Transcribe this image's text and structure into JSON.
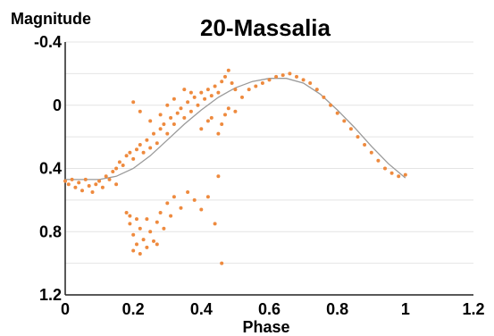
{
  "chart_data": {
    "type": "scatter",
    "title": "20-Massalia",
    "xlabel": "Phase",
    "ylabel": "Magnitude",
    "xlim": [
      0,
      1.2
    ],
    "ylim": [
      -0.4,
      1.2
    ],
    "y_inverted": true,
    "grid": "horizontal",
    "x_ticks": [
      "0",
      "0.2",
      "0.4",
      "0.6",
      "0.8",
      "1",
      "1.2"
    ],
    "y_ticks": [
      "-0.4",
      "0",
      "0.4",
      "0.8",
      "1.2"
    ],
    "colors": {
      "points": "#ee8a3e",
      "fit": "#9a9a9a"
    },
    "series": [
      {
        "type": "scatter",
        "points": [
          [
            0.0,
            0.48
          ],
          [
            0.01,
            0.5
          ],
          [
            0.02,
            0.47
          ],
          [
            0.03,
            0.52
          ],
          [
            0.04,
            0.49
          ],
          [
            0.05,
            0.54
          ],
          [
            0.06,
            0.47
          ],
          [
            0.07,
            0.51
          ],
          [
            0.08,
            0.55
          ],
          [
            0.09,
            0.5
          ],
          [
            0.1,
            0.48
          ],
          [
            0.11,
            0.52
          ],
          [
            0.12,
            0.45
          ],
          [
            0.13,
            0.47
          ],
          [
            0.14,
            0.42
          ],
          [
            0.15,
            0.5
          ],
          [
            0.15,
            0.4
          ],
          [
            0.16,
            0.36
          ],
          [
            0.17,
            0.38
          ],
          [
            0.18,
            0.32
          ],
          [
            0.19,
            0.3
          ],
          [
            0.2,
            0.34
          ],
          [
            0.21,
            0.28
          ],
          [
            0.22,
            0.25
          ],
          [
            0.23,
            0.3
          ],
          [
            0.24,
            0.22
          ],
          [
            0.25,
            0.27
          ],
          [
            0.26,
            0.18
          ],
          [
            0.27,
            0.24
          ],
          [
            0.28,
            0.15
          ],
          [
            0.29,
            0.12
          ],
          [
            0.3,
            0.18
          ],
          [
            0.31,
            0.08
          ],
          [
            0.32,
            0.12
          ],
          [
            0.33,
            0.05
          ],
          [
            0.34,
            0.02
          ],
          [
            0.35,
            0.08
          ],
          [
            0.36,
            -0.02
          ],
          [
            0.37,
            0.04
          ],
          [
            0.38,
            -0.05
          ],
          [
            0.39,
            0.0
          ],
          [
            0.4,
            -0.08
          ],
          [
            0.41,
            -0.04
          ],
          [
            0.42,
            -0.1
          ],
          [
            0.43,
            -0.06
          ],
          [
            0.44,
            -0.12
          ],
          [
            0.45,
            -0.08
          ],
          [
            0.46,
            -0.15
          ],
          [
            0.47,
            -0.18
          ],
          [
            0.48,
            -0.22
          ],
          [
            0.49,
            -0.14
          ],
          [
            0.5,
            -0.1
          ],
          [
            0.2,
            -0.02
          ],
          [
            0.22,
            0.04
          ],
          [
            0.25,
            0.1
          ],
          [
            0.28,
            0.06
          ],
          [
            0.3,
            0.0
          ],
          [
            0.32,
            -0.04
          ],
          [
            0.35,
            -0.1
          ],
          [
            0.37,
            -0.08
          ],
          [
            0.4,
            0.15
          ],
          [
            0.42,
            0.1
          ],
          [
            0.43,
            0.08
          ],
          [
            0.45,
            0.18
          ],
          [
            0.46,
            0.12
          ],
          [
            0.47,
            0.06
          ],
          [
            0.48,
            0.02
          ],
          [
            0.5,
            0.04
          ],
          [
            0.52,
            -0.05
          ],
          [
            0.54,
            -0.1
          ],
          [
            0.56,
            -0.12
          ],
          [
            0.58,
            -0.14
          ],
          [
            0.6,
            -0.16
          ],
          [
            0.62,
            -0.18
          ],
          [
            0.64,
            -0.19
          ],
          [
            0.66,
            -0.2
          ],
          [
            0.68,
            -0.18
          ],
          [
            0.7,
            -0.16
          ],
          [
            0.72,
            -0.14
          ],
          [
            0.74,
            -0.1
          ],
          [
            0.76,
            -0.05
          ],
          [
            0.78,
            0.0
          ],
          [
            0.8,
            0.05
          ],
          [
            0.82,
            0.1
          ],
          [
            0.84,
            0.15
          ],
          [
            0.86,
            0.2
          ],
          [
            0.88,
            0.25
          ],
          [
            0.9,
            0.3
          ],
          [
            0.92,
            0.35
          ],
          [
            0.94,
            0.4
          ],
          [
            0.96,
            0.43
          ],
          [
            0.98,
            0.45
          ],
          [
            1.0,
            0.44
          ],
          [
            0.18,
            0.68
          ],
          [
            0.19,
            0.75
          ],
          [
            0.2,
            0.82
          ],
          [
            0.21,
            0.88
          ],
          [
            0.22,
            0.78
          ],
          [
            0.23,
            0.85
          ],
          [
            0.24,
            0.72
          ],
          [
            0.25,
            0.8
          ],
          [
            0.26,
            0.86
          ],
          [
            0.27,
            0.74
          ],
          [
            0.28,
            0.68
          ],
          [
            0.29,
            0.78
          ],
          [
            0.3,
            0.62
          ],
          [
            0.31,
            0.7
          ],
          [
            0.32,
            0.58
          ],
          [
            0.34,
            0.65
          ],
          [
            0.36,
            0.55
          ],
          [
            0.38,
            0.6
          ],
          [
            0.4,
            0.66
          ],
          [
            0.42,
            0.58
          ],
          [
            0.44,
            0.75
          ],
          [
            0.45,
            0.45
          ],
          [
            0.46,
            1.0
          ],
          [
            0.2,
            0.92
          ],
          [
            0.22,
            0.94
          ],
          [
            0.24,
            0.9
          ],
          [
            0.27,
            0.88
          ],
          [
            0.19,
            0.7
          ],
          [
            0.21,
            0.72
          ]
        ]
      },
      {
        "type": "line",
        "points": [
          [
            0.0,
            0.47
          ],
          [
            0.05,
            0.47
          ],
          [
            0.1,
            0.47
          ],
          [
            0.15,
            0.45
          ],
          [
            0.2,
            0.4
          ],
          [
            0.25,
            0.32
          ],
          [
            0.3,
            0.22
          ],
          [
            0.35,
            0.12
          ],
          [
            0.4,
            0.03
          ],
          [
            0.45,
            -0.05
          ],
          [
            0.5,
            -0.11
          ],
          [
            0.55,
            -0.15
          ],
          [
            0.6,
            -0.17
          ],
          [
            0.65,
            -0.17
          ],
          [
            0.7,
            -0.14
          ],
          [
            0.75,
            -0.07
          ],
          [
            0.8,
            0.03
          ],
          [
            0.85,
            0.14
          ],
          [
            0.9,
            0.26
          ],
          [
            0.95,
            0.37
          ],
          [
            1.0,
            0.46
          ]
        ]
      }
    ]
  }
}
